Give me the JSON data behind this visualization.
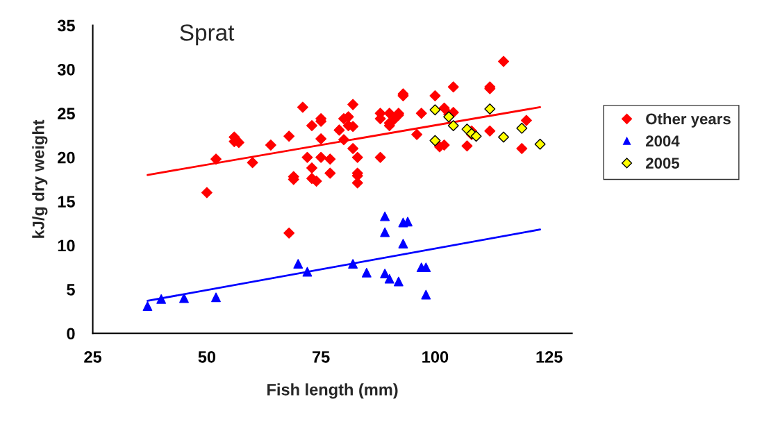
{
  "chart_data": {
    "type": "scatter",
    "title": "Sprat",
    "xlabel": "Fish length (mm)",
    "ylabel": "kJ/g dry weight",
    "xlim": [
      25,
      130
    ],
    "xticks": [
      25,
      50,
      75,
      100,
      125
    ],
    "ylim": [
      0,
      35
    ],
    "yticks": [
      0,
      5,
      10,
      15,
      20,
      25,
      30,
      35
    ],
    "grid": false,
    "legend": "right",
    "series": [
      {
        "name": "Other years",
        "marker": "diamond",
        "color": "#ff0000",
        "x": [
          50,
          52,
          56,
          56,
          57,
          60,
          64,
          68,
          68,
          69,
          69,
          71,
          72,
          73,
          73,
          73,
          74,
          75,
          75,
          75,
          75,
          77,
          77,
          79,
          80,
          80,
          81,
          81,
          82,
          82,
          82,
          83,
          83,
          83,
          83,
          88,
          88,
          88,
          90,
          90,
          90,
          91,
          92,
          92,
          93,
          93,
          96,
          97,
          100,
          101,
          102,
          102,
          103,
          104,
          104,
          107,
          108,
          108,
          112,
          112,
          112,
          115,
          119,
          120
        ],
        "values": [
          16,
          19.8,
          22.3,
          21.8,
          21.7,
          19.4,
          21.4,
          11.4,
          22.4,
          17.8,
          17.5,
          25.7,
          20,
          23.6,
          18.8,
          17.6,
          17.3,
          24.4,
          24.1,
          22.1,
          20,
          19.8,
          18.2,
          23.1,
          24.4,
          22,
          24.6,
          23.6,
          26,
          23.5,
          21,
          20,
          18.2,
          17.9,
          17.1,
          25,
          24.4,
          20,
          25,
          23.9,
          23.6,
          24.3,
          25,
          24.8,
          27.2,
          27,
          22.6,
          25,
          27,
          21.2,
          25.6,
          21.4,
          24.9,
          28,
          25.1,
          21.3,
          23,
          22.6,
          28,
          27.8,
          23,
          30.9,
          21,
          24.2
        ]
      },
      {
        "name": "2004",
        "marker": "triangle",
        "color": "#0000ff",
        "x": [
          37,
          40,
          45,
          52,
          70,
          72,
          82,
          85,
          89,
          89,
          89,
          90,
          92,
          93,
          93,
          94,
          97,
          98,
          98
        ],
        "values": [
          3.1,
          3.9,
          4,
          4.1,
          7.9,
          7,
          7.9,
          6.9,
          13.3,
          11.5,
          6.8,
          6.2,
          5.9,
          12.6,
          10.2,
          12.7,
          7.5,
          7.5,
          4.4
        ]
      },
      {
        "name": "2005",
        "marker": "diamond",
        "color": "#ffff00",
        "x": [
          100,
          100,
          103,
          104,
          107,
          108,
          109,
          112,
          115,
          119,
          123
        ],
        "values": [
          25.4,
          21.9,
          24.6,
          23.6,
          23.2,
          22.7,
          22.4,
          25.5,
          22.3,
          23.3,
          21.5
        ]
      },
      {
        "type": "line",
        "line_style": "solid",
        "color": "#ff0000",
        "x": [
          37,
          123
        ],
        "values": [
          18,
          25.7
        ]
      },
      {
        "type": "line",
        "line_style": "solid",
        "color": "#0000ff",
        "x": [
          37,
          123
        ],
        "values": [
          3.7,
          11.8
        ]
      }
    ]
  }
}
